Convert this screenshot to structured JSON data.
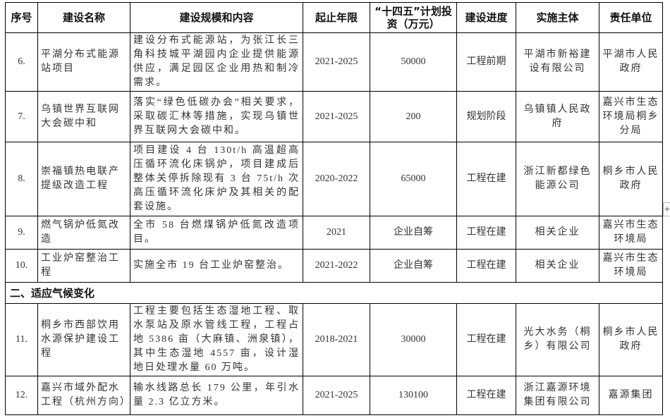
{
  "headers": [
    "序号",
    "建设名称",
    "建设规模和内容",
    "起止年限",
    "“十四五”计划投资（万元）",
    "建设进度",
    "实施主体",
    "责任单位"
  ],
  "rows_a": [
    {
      "no": "6.",
      "name": "平湖分布式能源站项目",
      "content": "建设分布式能源站，为张江长三角科技城平湖园内企业提供能源供应，满足园区企业用热和制冷需求。",
      "years": "2021-2025",
      "investment": "50000",
      "progress": "工程前期",
      "implementer": "平湖市新裕建设有限公司",
      "responsible": "平湖市人民政府"
    },
    {
      "no": "7.",
      "name": "乌镇世界互联网大会碳中和",
      "content": "落实“绿色低碳办会”相关要求，采取碳汇林等措施，实现乌镇世界互联网大会碳中和。",
      "years": "2021-2025",
      "investment": "200",
      "progress": "规划阶段",
      "implementer": "乌镇镇人民政府",
      "responsible": "嘉兴市生态环境局桐乡分局"
    },
    {
      "no": "8.",
      "name": "崇福镇热电联产提级改造工程",
      "content": "项目建设 4 台 130t/h 高温超高压循环流化床锅炉，项目建成后整体关停拆除现有 3 台 75t/h 次高压循环流化床炉及其相关的配套设施。",
      "years": "2020-2022",
      "investment": "65000",
      "progress": "工程在建",
      "implementer": "浙江新都绿色能源公司",
      "responsible": "桐乡市人民政府"
    },
    {
      "no": "9.",
      "name": "燃气锅炉低氮改造",
      "content": "全市 58 台燃煤锅炉低氮改造项目。",
      "years": "2021",
      "investment": "企业自筹",
      "progress": "工程在建",
      "implementer": "相关企业",
      "responsible": "嘉兴市生态环境局"
    },
    {
      "no": "10.",
      "name": "工业炉窑整治工程",
      "content": "实施全市 19 台工业炉窑整治。",
      "years": "2021-2022",
      "investment": "企业自筹",
      "progress": "工程在建",
      "implementer": "相关企业",
      "responsible": "嘉兴市生态环境局"
    }
  ],
  "section_title": "二、适应气候变化",
  "rows_b": [
    {
      "no": "11.",
      "name": "桐乡市西部饮用水源保护建设工程",
      "content": "工程主要包括生态湿地工程、取水泵站及原水管线工程，工程占地 5386 亩（大麻镇、洲泉镇），其中生态湿地 4557 亩，设计湿地日处理水量 60 万吨。",
      "years": "2018-2021",
      "investment": "30000",
      "progress": "工程在建",
      "implementer": "光大水务（桐乡）有限公司",
      "responsible": "桐乡市人民政府"
    },
    {
      "no": "12.",
      "name": "嘉兴市域外配水工程（杭州方向）",
      "content": "输水线路总长 179 公里，年引水量 2.3 亿立方米。",
      "years": "2021-2025",
      "investment": "130100",
      "progress": "工程在建",
      "implementer": "浙江嘉源环境集团有限公司",
      "responsible": "嘉源集团"
    }
  ],
  "table_handle": "+"
}
